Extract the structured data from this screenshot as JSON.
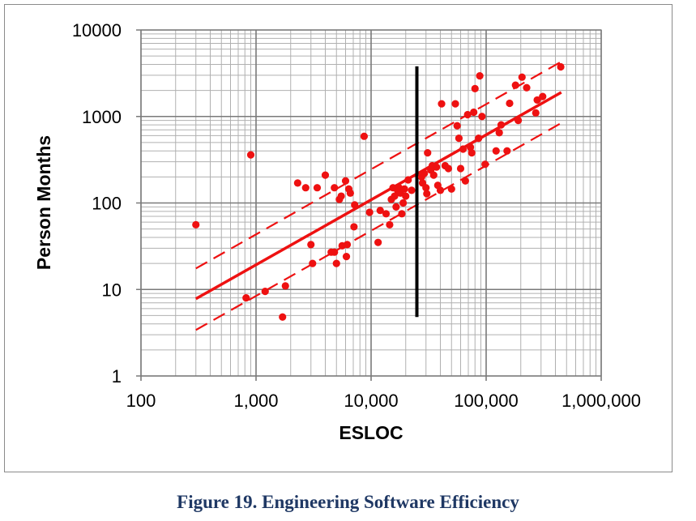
{
  "caption": "Figure 19. Engineering Software Efficiency",
  "colors": {
    "points": "#ee1111",
    "fit_line": "#ee1111",
    "marker_line": "#000000",
    "grid": "#b0b0b0",
    "caption": "#1f3864",
    "frame": "#8a8a8a"
  },
  "chart_data": {
    "type": "scatter",
    "title": "",
    "xlabel": "ESLOC",
    "ylabel": "Person Months",
    "x_scale": "log",
    "y_scale": "log",
    "xlim": [
      100,
      1000000
    ],
    "ylim": [
      1,
      10000
    ],
    "grid": true,
    "legend": "none",
    "x_tick_labels": [
      "100",
      "1,000",
      "10,000",
      "100,000",
      "1,000,000"
    ],
    "y_tick_labels": [
      "1",
      "10",
      "100",
      "1000",
      "10000"
    ],
    "x_ticks": [
      100,
      1000,
      10000,
      100000,
      1000000
    ],
    "y_ticks": [
      1,
      10,
      100,
      1000,
      10000
    ],
    "points": [
      [
        300,
        56
      ],
      [
        820,
        8
      ],
      [
        900,
        360
      ],
      [
        1200,
        9.5
      ],
      [
        1700,
        4.8
      ],
      [
        1800,
        11
      ],
      [
        2300,
        170
      ],
      [
        2700,
        150
      ],
      [
        3000,
        33
      ],
      [
        3100,
        20
      ],
      [
        3400,
        150
      ],
      [
        4000,
        210
      ],
      [
        4500,
        27
      ],
      [
        4800,
        27
      ],
      [
        4800,
        150
      ],
      [
        5000,
        20
      ],
      [
        5300,
        110
      ],
      [
        5500,
        120
      ],
      [
        5600,
        32
      ],
      [
        6000,
        180
      ],
      [
        6100,
        24
      ],
      [
        6200,
        33
      ],
      [
        6400,
        145
      ],
      [
        6600,
        130
      ],
      [
        7100,
        53
      ],
      [
        7200,
        95
      ],
      [
        8700,
        590
      ],
      [
        9700,
        78
      ],
      [
        11500,
        35
      ],
      [
        12000,
        82
      ],
      [
        13500,
        75
      ],
      [
        14500,
        56
      ],
      [
        15000,
        110
      ],
      [
        15500,
        150
      ],
      [
        16000,
        120
      ],
      [
        16500,
        90
      ],
      [
        17000,
        140
      ],
      [
        17500,
        150
      ],
      [
        18000,
        130
      ],
      [
        18500,
        75
      ],
      [
        19000,
        100
      ],
      [
        19500,
        145
      ],
      [
        20000,
        120
      ],
      [
        21000,
        185
      ],
      [
        22500,
        140
      ],
      [
        27500,
        200
      ],
      [
        28000,
        170
      ],
      [
        29000,
        220
      ],
      [
        30000,
        150
      ],
      [
        30500,
        128
      ],
      [
        31000,
        380
      ],
      [
        33000,
        240
      ],
      [
        34000,
        270
      ],
      [
        35000,
        210
      ],
      [
        37000,
        260
      ],
      [
        38000,
        160
      ],
      [
        40000,
        140
      ],
      [
        41000,
        1400
      ],
      [
        44000,
        270
      ],
      [
        47000,
        250
      ],
      [
        50000,
        145
      ],
      [
        54000,
        1400
      ],
      [
        56000,
        780
      ],
      [
        58000,
        560
      ],
      [
        60000,
        250
      ],
      [
        63000,
        420
      ],
      [
        66000,
        180
      ],
      [
        69000,
        1050
      ],
      [
        73000,
        440
      ],
      [
        75000,
        380
      ],
      [
        78000,
        1120
      ],
      [
        80000,
        2100
      ],
      [
        86000,
        560
      ],
      [
        88000,
        2950
      ],
      [
        92000,
        1000
      ],
      [
        98000,
        280
      ],
      [
        122000,
        400
      ],
      [
        130000,
        650
      ],
      [
        135000,
        800
      ],
      [
        152000,
        400
      ],
      [
        160000,
        1420
      ],
      [
        180000,
        2300
      ],
      [
        190000,
        900
      ],
      [
        205000,
        2850
      ],
      [
        225000,
        2150
      ],
      [
        270000,
        1100
      ],
      [
        278000,
        1550
      ],
      [
        310000,
        1700
      ],
      [
        445000,
        3750
      ]
    ],
    "fit_line": {
      "x": [
        300,
        450000
      ],
      "y": [
        7.8,
        1900
      ]
    },
    "upper_bound": {
      "x": [
        300,
        450000
      ],
      "y": [
        17.5,
        4300
      ]
    },
    "lower_bound": {
      "x": [
        300,
        450000
      ],
      "y": [
        3.4,
        840
      ]
    },
    "vertical_marker": {
      "x": 25000,
      "y": [
        4.8,
        3800
      ]
    }
  }
}
